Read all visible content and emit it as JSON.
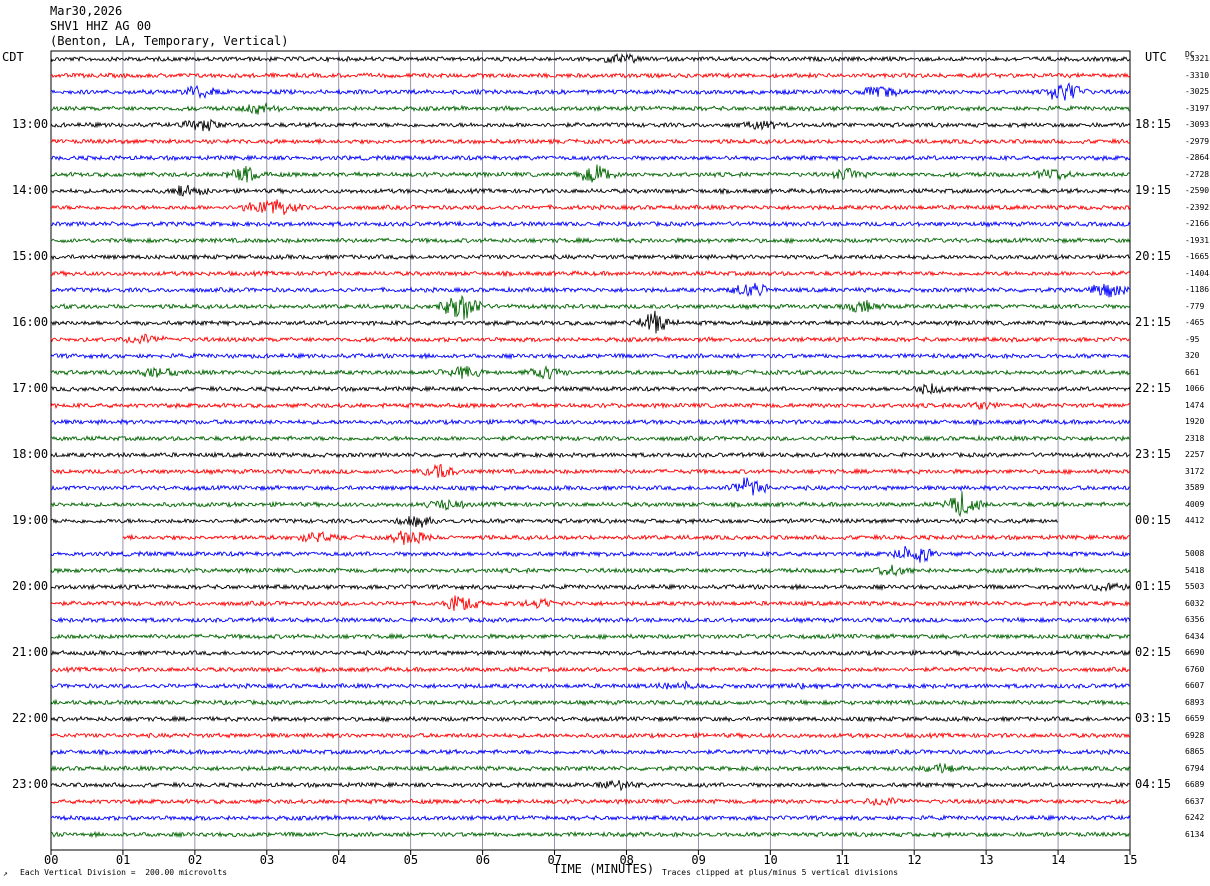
{
  "header": {
    "date": "Mar30,2026",
    "station": "SHV1 HHZ AG 00",
    "location": "(Benton, LA, Temporary, Vertical)"
  },
  "tz_left": "CDT",
  "tz_right": "UTC",
  "dc_label": "DC",
  "footer": {
    "scale": "Each Vertical Division =  200.00 microvolts",
    "xlabel": "TIME (MINUTES)",
    "clip": "Traces clipped at plus/minus 5 vertical divisions"
  },
  "colors": {
    "cycle": [
      "#000000",
      "#ff0000",
      "#0000ff",
      "#006600"
    ],
    "grid": "#7a7a9a"
  },
  "chart_data": {
    "type": "line",
    "title": "SHV1 HHZ AG 00",
    "xlabel": "TIME (MINUTES)",
    "xlim": [
      0,
      15
    ],
    "x_ticks": [
      "00",
      "01",
      "02",
      "03",
      "04",
      "05",
      "06",
      "07",
      "08",
      "09",
      "10",
      "11",
      "12",
      "13",
      "14",
      "15"
    ],
    "traces_per_hour": 4,
    "trace_count": 48,
    "left_hour_labels": [
      {
        "row": 4,
        "label": "13:00"
      },
      {
        "row": 8,
        "label": "14:00"
      },
      {
        "row": 12,
        "label": "15:00"
      },
      {
        "row": 16,
        "label": "16:00"
      },
      {
        "row": 20,
        "label": "17:00"
      },
      {
        "row": 24,
        "label": "18:00"
      },
      {
        "row": 28,
        "label": "19:00"
      },
      {
        "row": 32,
        "label": "20:00"
      },
      {
        "row": 36,
        "label": "21:00"
      },
      {
        "row": 40,
        "label": "22:00"
      },
      {
        "row": 44,
        "label": "23:00"
      }
    ],
    "right_hour_labels": [
      {
        "row": 4,
        "label": "18:15"
      },
      {
        "row": 8,
        "label": "19:15"
      },
      {
        "row": 12,
        "label": "20:15"
      },
      {
        "row": 16,
        "label": "21:15"
      },
      {
        "row": 20,
        "label": "22:15"
      },
      {
        "row": 24,
        "label": "23:15"
      },
      {
        "row": 28,
        "label": "00:15"
      },
      {
        "row": 32,
        "label": "01:15"
      },
      {
        "row": 36,
        "label": "02:15"
      },
      {
        "row": 40,
        "label": "03:15"
      },
      {
        "row": 44,
        "label": "04:15"
      }
    ],
    "dc_offsets": [
      "-3321",
      "-3310",
      "-3025",
      "-3197",
      "-3093",
      "-2979",
      "-2864",
      "-2728",
      "-2590",
      "-2392",
      "-2166",
      "-1931",
      "-1665",
      "-1404",
      "-1186",
      "-779",
      "-465",
      "-95",
      "320",
      "661",
      "1066",
      "1474",
      "1920",
      "2318",
      "2257",
      "3172",
      "3589",
      "4009",
      "4412",
      "",
      "5008",
      "5418",
      "5503",
      "6032",
      "6356",
      "6434",
      "6690",
      "6760",
      "6607",
      "6893",
      "6659",
      "6928",
      "6865",
      "6794",
      "6689",
      "6637",
      "6242",
      "6134"
    ],
    "events": [
      {
        "row": 0,
        "t": 7.9,
        "amp": 4
      },
      {
        "row": 2,
        "t": 2.1,
        "amp": 5
      },
      {
        "row": 2,
        "t": 11.5,
        "amp": 5
      },
      {
        "row": 2,
        "t": 14.1,
        "amp": 9
      },
      {
        "row": 3,
        "t": 2.9,
        "amp": 4
      },
      {
        "row": 4,
        "t": 2.1,
        "amp": 5
      },
      {
        "row": 4,
        "t": 9.9,
        "amp": 3
      },
      {
        "row": 7,
        "t": 2.7,
        "amp": 6
      },
      {
        "row": 7,
        "t": 7.6,
        "amp": 8
      },
      {
        "row": 7,
        "t": 11.1,
        "amp": 4
      },
      {
        "row": 7,
        "t": 13.9,
        "amp": 5
      },
      {
        "row": 8,
        "t": 1.9,
        "amp": 4
      },
      {
        "row": 9,
        "t": 3.2,
        "amp": 5
      },
      {
        "row": 9,
        "t": 2.9,
        "amp": 4
      },
      {
        "row": 14,
        "t": 9.7,
        "amp": 6
      },
      {
        "row": 14,
        "t": 14.7,
        "amp": 6
      },
      {
        "row": 15,
        "t": 5.7,
        "amp": 12
      },
      {
        "row": 15,
        "t": 11.3,
        "amp": 4
      },
      {
        "row": 16,
        "t": 8.4,
        "amp": 9
      },
      {
        "row": 17,
        "t": 1.3,
        "amp": 4
      },
      {
        "row": 19,
        "t": 1.5,
        "amp": 4
      },
      {
        "row": 19,
        "t": 5.7,
        "amp": 5
      },
      {
        "row": 19,
        "t": 6.9,
        "amp": 5
      },
      {
        "row": 20,
        "t": 12.2,
        "amp": 4
      },
      {
        "row": 21,
        "t": 12.9,
        "amp": 3
      },
      {
        "row": 25,
        "t": 5.4,
        "amp": 5
      },
      {
        "row": 26,
        "t": 9.7,
        "amp": 9
      },
      {
        "row": 27,
        "t": 12.7,
        "amp": 10
      },
      {
        "row": 27,
        "t": 5.5,
        "amp": 4
      },
      {
        "row": 28,
        "t": 5.1,
        "amp": 4
      },
      {
        "row": 29,
        "t": 5.0,
        "amp": 6
      },
      {
        "row": 29,
        "t": 3.7,
        "amp": 4
      },
      {
        "row": 30,
        "t": 12.0,
        "amp": 8
      },
      {
        "row": 31,
        "t": 11.7,
        "amp": 4
      },
      {
        "row": 32,
        "t": 14.7,
        "amp": 4
      },
      {
        "row": 33,
        "t": 5.7,
        "amp": 6
      },
      {
        "row": 33,
        "t": 6.8,
        "amp": 3
      },
      {
        "row": 38,
        "t": 8.7,
        "amp": 3
      },
      {
        "row": 38,
        "t": 10.5,
        "amp": 2
      },
      {
        "row": 43,
        "t": 12.4,
        "amp": 3
      },
      {
        "row": 44,
        "t": 7.9,
        "amp": 4
      },
      {
        "row": 45,
        "t": 11.6,
        "amp": 3
      }
    ],
    "gap": {
      "row": 28,
      "t_end": 14.0,
      "next_row": 29,
      "t_start": 1.0
    }
  }
}
